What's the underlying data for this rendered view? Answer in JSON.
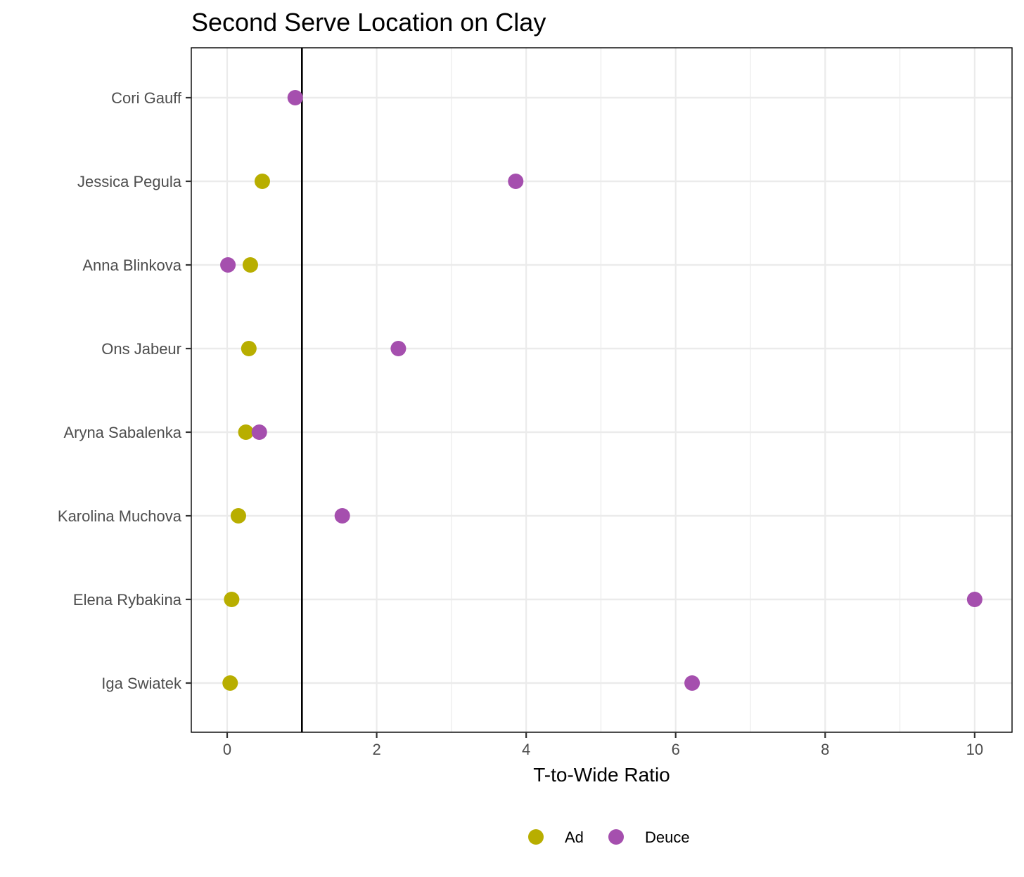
{
  "chart_data": {
    "type": "scatter",
    "title": "Second Serve Location on Clay",
    "xlabel": "T-to-Wide Ratio",
    "ylabel": "",
    "xlim": [
      -0.48,
      10.5
    ],
    "x_ticks": [
      0,
      2,
      4,
      6,
      8,
      10
    ],
    "x_tick_labels": [
      "0",
      "2",
      "4",
      "6",
      "8",
      "10"
    ],
    "categories": [
      "Cori Gauff",
      "Jessica Pegula",
      "Anna Blinkova",
      "Ons Jabeur",
      "Aryna Sabalenka",
      "Karolina Muchova",
      "Elena Rybakina",
      "Iga Swiatek"
    ],
    "reference_line_x": 1,
    "grid": true,
    "legend_position": "bottom",
    "series": [
      {
        "name": "Ad",
        "color": "#B8AE00",
        "values": [
          null,
          0.47,
          0.31,
          0.29,
          0.25,
          0.15,
          0.06,
          0.04
        ]
      },
      {
        "name": "Deuce",
        "color": "#A54FAE",
        "values": [
          0.91,
          3.86,
          0.01,
          2.29,
          0.43,
          1.54,
          10.0,
          6.22
        ]
      }
    ]
  }
}
